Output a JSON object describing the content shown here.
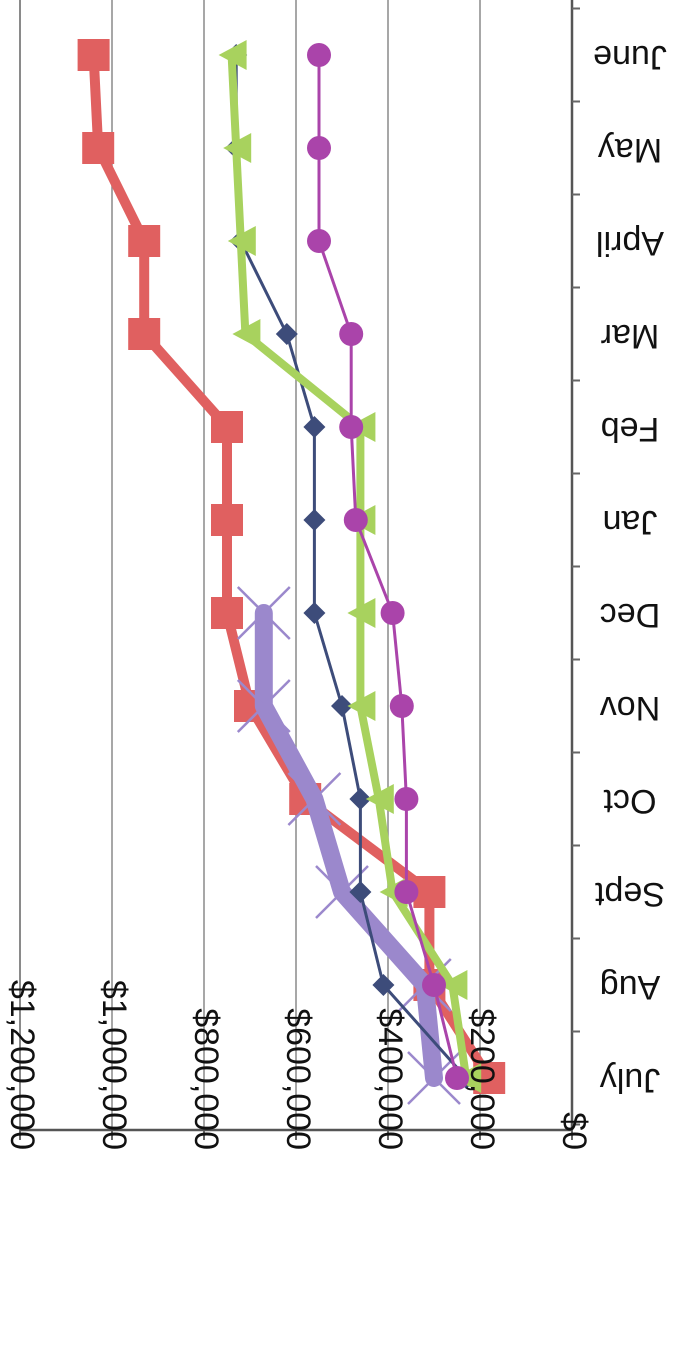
{
  "chart_data": {
    "type": "line",
    "title": "",
    "xlabel": "",
    "ylabel": "",
    "orientation": "rotated",
    "categories": [
      "July",
      "Aug",
      "Sept",
      "Oct",
      "Nov",
      "Dec",
      "Jan",
      "Feb",
      "Mar",
      "April",
      "May",
      "June"
    ],
    "y_ticks": [
      "$0",
      "$200,000",
      "$400,000",
      "$600,000",
      "$800,000",
      "$1,000,000",
      "$1,200,000"
    ],
    "ylim": [
      0,
      1200000
    ],
    "grid": true,
    "legend": "none",
    "series": [
      {
        "color": "#e06060",
        "marker": "square",
        "values": [
          180000,
          310000,
          310000,
          580000,
          700000,
          750000,
          750000,
          750000,
          930000,
          930000,
          1030000,
          1040000
        ]
      },
      {
        "color": "#9b88cc",
        "marker": "x",
        "values": [
          300000,
          320000,
          500000,
          560000,
          670000,
          670000,
          null,
          null,
          null,
          null,
          null,
          null
        ]
      },
      {
        "color": "#3d4c7a",
        "marker": "diamond",
        "values": [
          230000,
          410000,
          460000,
          460000,
          500000,
          560000,
          560000,
          560000,
          620000,
          720000,
          730000,
          730000
        ]
      },
      {
        "color": "#a8d25e",
        "marker": "triangle",
        "values": [
          230000,
          260000,
          390000,
          420000,
          460000,
          460000,
          460000,
          460000,
          710000,
          720000,
          730000,
          740000
        ]
      },
      {
        "color": "#aa44aa",
        "marker": "circle",
        "values": [
          250000,
          300000,
          360000,
          360000,
          370000,
          390000,
          470000,
          480000,
          480000,
          550000,
          550000,
          550000
        ]
      }
    ]
  }
}
